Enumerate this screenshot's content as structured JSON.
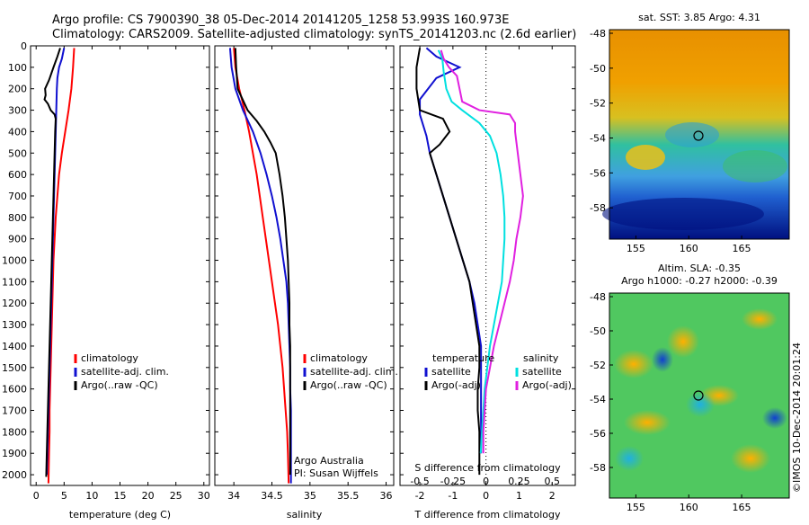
{
  "header": {
    "line1": "Argo profile: CS 7900390_38 05-Dec-2014 20141205_1258 53.993S 160.973E",
    "line2": "Climatology: CARS2009. Satellite-adjusted climatology: synTS_20141203.nc (2.6d earlier)"
  },
  "colors": {
    "climatology": "#ff0000",
    "satellite": "#1010d0",
    "argo": "#000000",
    "salinity_clim": "#00e0e0",
    "salinity_argo": "#e020e0"
  },
  "chart_data": [
    {
      "type": "line",
      "id": "temperature",
      "xlabel": "temperature (deg C)",
      "xlim": [
        -1,
        31
      ],
      "ylim": [
        2050,
        0
      ],
      "xticks": [
        0,
        5,
        10,
        15,
        20,
        25,
        30
      ],
      "yticks": [
        0,
        100,
        200,
        300,
        400,
        500,
        600,
        700,
        800,
        900,
        1000,
        1100,
        1200,
        1300,
        1400,
        1500,
        1600,
        1700,
        1800,
        1900,
        2000
      ],
      "legend": [
        "climatology",
        "satellite-adj. clim.",
        "Argo(..raw -QC)"
      ],
      "series": [
        {
          "name": "climatology",
          "color": "#ff0000",
          "points": [
            [
              6.8,
              10
            ],
            [
              6.6,
              100
            ],
            [
              6.3,
              200
            ],
            [
              5.8,
              300
            ],
            [
              5.2,
              400
            ],
            [
              4.6,
              500
            ],
            [
              4.1,
              600
            ],
            [
              3.8,
              700
            ],
            [
              3.5,
              800
            ],
            [
              3.3,
              900
            ],
            [
              3.1,
              1000
            ],
            [
              3.0,
              1100
            ],
            [
              2.9,
              1200
            ],
            [
              2.8,
              1300
            ],
            [
              2.7,
              1400
            ],
            [
              2.6,
              1500
            ],
            [
              2.5,
              1600
            ],
            [
              2.4,
              1700
            ],
            [
              2.4,
              1800
            ],
            [
              2.3,
              1900
            ],
            [
              2.2,
              2040
            ]
          ]
        },
        {
          "name": "satellite-adj. clim.",
          "color": "#1010d0",
          "points": [
            [
              5.0,
              10
            ],
            [
              4.6,
              60
            ],
            [
              4.1,
              100
            ],
            [
              3.8,
              150
            ],
            [
              3.7,
              200
            ],
            [
              3.6,
              300
            ],
            [
              3.5,
              400
            ],
            [
              3.4,
              500
            ],
            [
              3.3,
              600
            ],
            [
              3.2,
              700
            ],
            [
              3.1,
              800
            ],
            [
              3.0,
              900
            ],
            [
              2.9,
              1000
            ],
            [
              2.8,
              1100
            ],
            [
              2.7,
              1200
            ],
            [
              2.6,
              1300
            ],
            [
              2.5,
              1400
            ],
            [
              2.4,
              1500
            ],
            [
              2.3,
              1600
            ],
            [
              2.2,
              1700
            ],
            [
              2.1,
              1800
            ],
            [
              2.0,
              1900
            ],
            [
              1.9,
              2000
            ]
          ]
        },
        {
          "name": "Argo(..raw -QC)",
          "color": "#000000",
          "points": [
            [
              4.3,
              10
            ],
            [
              3.8,
              50
            ],
            [
              3.1,
              100
            ],
            [
              2.3,
              160
            ],
            [
              1.6,
              200
            ],
            [
              1.7,
              230
            ],
            [
              1.5,
              250
            ],
            [
              2.1,
              270
            ],
            [
              2.6,
              300
            ],
            [
              3.3,
              320
            ],
            [
              3.5,
              340
            ],
            [
              3.4,
              400
            ],
            [
              3.3,
              500
            ],
            [
              3.2,
              600
            ],
            [
              3.1,
              700
            ],
            [
              3.0,
              800
            ],
            [
              2.9,
              900
            ],
            [
              2.8,
              1000
            ],
            [
              2.7,
              1100
            ],
            [
              2.6,
              1200
            ],
            [
              2.5,
              1300
            ],
            [
              2.4,
              1400
            ],
            [
              2.3,
              1500
            ],
            [
              2.2,
              1600
            ],
            [
              2.1,
              1700
            ],
            [
              2.0,
              1800
            ],
            [
              1.9,
              1900
            ],
            [
              1.8,
              2010
            ]
          ]
        }
      ]
    },
    {
      "type": "line",
      "id": "salinity",
      "xlabel": "salinity",
      "xlim": [
        33.75,
        36.1
      ],
      "ylim": [
        2050,
        0
      ],
      "xticks": [
        34,
        34.5,
        35,
        35.5,
        36
      ],
      "xtick_labels": [
        "34",
        "34.5",
        "35",
        "35.5",
        "36"
      ],
      "legend": [
        "climatology",
        "satellite-adj. clim.",
        "Argo(..raw -QC)"
      ],
      "series": [
        {
          "name": "climatology",
          "color": "#ff0000",
          "points": [
            [
              34.0,
              10
            ],
            [
              34.02,
              100
            ],
            [
              34.07,
              200
            ],
            [
              34.14,
              300
            ],
            [
              34.2,
              400
            ],
            [
              34.25,
              500
            ],
            [
              34.3,
              600
            ],
            [
              34.34,
              700
            ],
            [
              34.38,
              800
            ],
            [
              34.42,
              900
            ],
            [
              34.46,
              1000
            ],
            [
              34.5,
              1100
            ],
            [
              34.54,
              1200
            ],
            [
              34.58,
              1300
            ],
            [
              34.61,
              1400
            ],
            [
              34.64,
              1500
            ],
            [
              34.66,
              1600
            ],
            [
              34.68,
              1700
            ],
            [
              34.7,
              1800
            ],
            [
              34.71,
              1900
            ],
            [
              34.72,
              2040
            ]
          ]
        },
        {
          "name": "satellite-adj. clim.",
          "color": "#1010d0",
          "points": [
            [
              33.95,
              10
            ],
            [
              33.97,
              100
            ],
            [
              34.02,
              200
            ],
            [
              34.12,
              300
            ],
            [
              34.25,
              400
            ],
            [
              34.35,
              500
            ],
            [
              34.43,
              600
            ],
            [
              34.5,
              700
            ],
            [
              34.56,
              800
            ],
            [
              34.61,
              900
            ],
            [
              34.65,
              1000
            ],
            [
              34.69,
              1100
            ],
            [
              34.71,
              1200
            ],
            [
              34.72,
              1300
            ],
            [
              34.73,
              1400
            ],
            [
              34.74,
              1500
            ],
            [
              34.74,
              1600
            ],
            [
              34.75,
              1700
            ],
            [
              34.75,
              1800
            ],
            [
              34.75,
              1900
            ],
            [
              34.75,
              2040
            ]
          ]
        },
        {
          "name": "Argo(..raw -QC)",
          "color": "#000000",
          "points": [
            [
              34.02,
              10
            ],
            [
              34.03,
              100
            ],
            [
              34.05,
              200
            ],
            [
              34.18,
              300
            ],
            [
              34.3,
              350
            ],
            [
              34.4,
              400
            ],
            [
              34.48,
              450
            ],
            [
              34.55,
              500
            ],
            [
              34.6,
              600
            ],
            [
              34.64,
              700
            ],
            [
              34.67,
              800
            ],
            [
              34.69,
              900
            ],
            [
              34.71,
              1000
            ],
            [
              34.72,
              1100
            ],
            [
              34.73,
              1200
            ],
            [
              34.73,
              1300
            ],
            [
              34.74,
              1400
            ],
            [
              34.74,
              1500
            ],
            [
              34.74,
              1600
            ],
            [
              34.74,
              1700
            ],
            [
              34.74,
              1800
            ],
            [
              34.74,
              1900
            ],
            [
              34.74,
              2000
            ]
          ]
        }
      ],
      "annotation": [
        "Argo Australia",
        "PI: Susan Wijffels"
      ]
    },
    {
      "type": "line",
      "id": "difference",
      "xlabel": "T difference from climatology",
      "top_label": "S difference from climatology",
      "xlim": [
        -2.6,
        2.7
      ],
      "ylim": [
        2050,
        0
      ],
      "xticks": [
        -2,
        -1,
        0,
        1,
        2
      ],
      "top_ticks": [
        -0.5,
        -0.25,
        0,
        0.25,
        0.5
      ],
      "top_tick_labels": [
        "-0.5",
        "-0.25",
        "0",
        "0.25",
        "0.5"
      ],
      "legend_temperature": [
        "temperature",
        "satellite",
        "Argo(-adj)"
      ],
      "legend_salinity": [
        "salinity",
        "satellite",
        "Argo(-adj)"
      ],
      "series": [
        {
          "name": "temperature satellite",
          "color": "#1010d0",
          "points": [
            [
              -1.8,
              10
            ],
            [
              -1.5,
              50
            ],
            [
              -0.8,
              100
            ],
            [
              -1.5,
              150
            ],
            [
              -2.0,
              250
            ],
            [
              -2.0,
              320
            ],
            [
              -1.8,
              420
            ],
            [
              -1.7,
              500
            ],
            [
              -1.5,
              600
            ],
            [
              -1.3,
              700
            ],
            [
              -1.1,
              800
            ],
            [
              -0.9,
              900
            ],
            [
              -0.7,
              1000
            ],
            [
              -0.5,
              1100
            ],
            [
              -0.35,
              1200
            ],
            [
              -0.25,
              1300
            ],
            [
              -0.15,
              1400
            ],
            [
              -0.15,
              1500
            ],
            [
              -0.15,
              1600
            ],
            [
              -0.15,
              1700
            ],
            [
              -0.15,
              1800
            ],
            [
              -0.15,
              1900
            ]
          ]
        },
        {
          "name": "temperature Argo(-adj)",
          "color": "#000000",
          "points": [
            [
              -2.0,
              10
            ],
            [
              -2.1,
              100
            ],
            [
              -2.1,
              200
            ],
            [
              -2.0,
              300
            ],
            [
              -1.3,
              340
            ],
            [
              -1.1,
              400
            ],
            [
              -1.4,
              460
            ],
            [
              -1.7,
              500
            ],
            [
              -1.5,
              600
            ],
            [
              -1.3,
              700
            ],
            [
              -1.1,
              800
            ],
            [
              -0.9,
              900
            ],
            [
              -0.7,
              1000
            ],
            [
              -0.5,
              1100
            ],
            [
              -0.4,
              1200
            ],
            [
              -0.3,
              1300
            ],
            [
              -0.2,
              1400
            ],
            [
              -0.2,
              1500
            ],
            [
              -0.25,
              1600
            ],
            [
              -0.25,
              1700
            ],
            [
              -0.2,
              1800
            ],
            [
              -0.2,
              1900
            ],
            [
              -0.2,
              2000
            ]
          ]
        },
        {
          "name": "salinity satellite",
          "color": "#00e0e0",
          "points": [
            [
              -0.36,
              20
            ],
            [
              -0.33,
              60
            ],
            [
              -0.32,
              120
            ],
            [
              -0.3,
              200
            ],
            [
              -0.26,
              260
            ],
            [
              -0.18,
              300
            ],
            [
              -0.05,
              360
            ],
            [
              0.03,
              420
            ],
            [
              0.08,
              500
            ],
            [
              0.11,
              600
            ],
            [
              0.13,
              700
            ],
            [
              0.14,
              800
            ],
            [
              0.14,
              900
            ],
            [
              0.13,
              1000
            ],
            [
              0.12,
              1100
            ],
            [
              0.09,
              1200
            ],
            [
              0.06,
              1300
            ],
            [
              0.03,
              1400
            ],
            [
              0.01,
              1500
            ],
            [
              -0.01,
              1600
            ],
            [
              -0.02,
              1700
            ],
            [
              -0.03,
              1800
            ],
            [
              -0.04,
              1900
            ]
          ]
        },
        {
          "name": "salinity Argo(-adj)",
          "color": "#e020e0",
          "points": [
            [
              -0.34,
              20
            ],
            [
              -0.32,
              60
            ],
            [
              -0.28,
              100
            ],
            [
              -0.22,
              140
            ],
            [
              -0.2,
              200
            ],
            [
              -0.18,
              260
            ],
            [
              -0.05,
              300
            ],
            [
              0.18,
              320
            ],
            [
              0.22,
              360
            ],
            [
              0.22,
              400
            ],
            [
              0.23,
              450
            ],
            [
              0.24,
              500
            ],
            [
              0.26,
              600
            ],
            [
              0.28,
              700
            ],
            [
              0.26,
              800
            ],
            [
              0.23,
              900
            ],
            [
              0.21,
              1000
            ],
            [
              0.18,
              1100
            ],
            [
              0.14,
              1200
            ],
            [
              0.1,
              1300
            ],
            [
              0.06,
              1400
            ],
            [
              0.03,
              1500
            ],
            [
              0.0,
              1600
            ],
            [
              -0.01,
              1700
            ],
            [
              -0.02,
              1800
            ],
            [
              -0.02,
              1900
            ]
          ]
        }
      ]
    }
  ],
  "map_sst": {
    "title": "sat. SST: 3.85 Argo: 4.31",
    "yticks": [
      -48,
      -50,
      -52,
      -54,
      -56,
      -58
    ],
    "xticks": [
      155,
      160,
      165
    ]
  },
  "map_sla": {
    "title1": "Altim. SLA: -0.35",
    "title2": "Argo h1000: -0.27 h2000: -0.39",
    "yticks": [
      -48,
      -50,
      -52,
      -54,
      -56,
      -58
    ],
    "xticks": [
      155,
      160,
      165
    ]
  },
  "credit": "©IMOS 10-Dec-2014 20:01:24"
}
